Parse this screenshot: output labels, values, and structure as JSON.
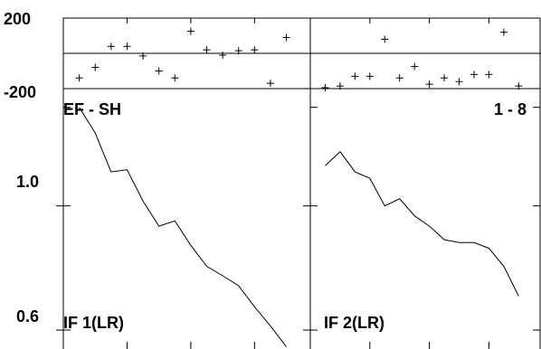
{
  "chart_data": {
    "type": "line",
    "phase_ylim": [
      -200,
      200
    ],
    "phase_ticks": [
      "200",
      "-200"
    ],
    "amp_ylim": [
      0.56,
      1.5
    ],
    "amp_scale": "log",
    "amp_ticks": [
      {
        "label": "1.0",
        "value": 1.0
      },
      {
        "label": "0.6",
        "value": 0.6
      }
    ],
    "baseline_label": "EF - SH",
    "channel_label": "1 - 8",
    "x_range": [
      0,
      15.5
    ],
    "panels": [
      {
        "name": "IF 1(LR)",
        "phase_points": [
          {
            "x": 1,
            "y": -140
          },
          {
            "x": 2,
            "y": -80
          },
          {
            "x": 3,
            "y": 40
          },
          {
            "x": 4,
            "y": 40
          },
          {
            "x": 5,
            "y": -15
          },
          {
            "x": 6,
            "y": -100
          },
          {
            "x": 7,
            "y": -140
          },
          {
            "x": 8,
            "y": 125
          },
          {
            "x": 9,
            "y": 20
          },
          {
            "x": 10,
            "y": -10
          },
          {
            "x": 11,
            "y": 15
          },
          {
            "x": 12,
            "y": 20
          },
          {
            "x": 13,
            "y": -170
          },
          {
            "x": 14,
            "y": 90
          }
        ],
        "amp_x": [
          1,
          2,
          3,
          4,
          5,
          6,
          7,
          8,
          9,
          10,
          11,
          12,
          13,
          14
        ],
        "amp_values": [
          1.5,
          1.35,
          1.15,
          1.16,
          1.02,
          0.92,
          0.94,
          0.85,
          0.78,
          0.75,
          0.72,
          0.66,
          0.61,
          0.56
        ]
      },
      {
        "name": "IF 2(LR)",
        "phase_points": [
          {
            "x": 1,
            "y": -195
          },
          {
            "x": 2,
            "y": -185
          },
          {
            "x": 3,
            "y": -130
          },
          {
            "x": 4,
            "y": -130
          },
          {
            "x": 5,
            "y": 80
          },
          {
            "x": 6,
            "y": -140
          },
          {
            "x": 7,
            "y": -75
          },
          {
            "x": 8,
            "y": -175
          },
          {
            "x": 9,
            "y": -140
          },
          {
            "x": 10,
            "y": -160
          },
          {
            "x": 11,
            "y": -120
          },
          {
            "x": 12,
            "y": -120
          },
          {
            "x": 13,
            "y": 120
          },
          {
            "x": 14,
            "y": -185
          }
        ],
        "amp_x": [
          1,
          2,
          3,
          4,
          5,
          6,
          7,
          8,
          9,
          10,
          11,
          12,
          13,
          14
        ],
        "amp_values": [
          1.18,
          1.25,
          1.15,
          1.12,
          1.0,
          1.03,
          0.96,
          0.92,
          0.87,
          0.86,
          0.86,
          0.84,
          0.78,
          0.69
        ]
      }
    ]
  }
}
